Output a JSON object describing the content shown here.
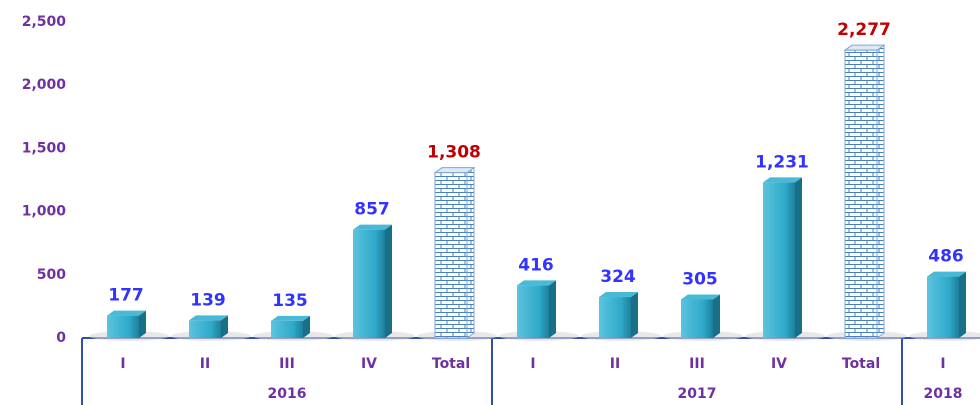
{
  "chart_data": {
    "type": "bar",
    "categories": [
      "I",
      "II",
      "III",
      "IV",
      "Total",
      "I",
      "II",
      "III",
      "IV",
      "Total",
      "I"
    ],
    "values": [
      177,
      139,
      135,
      857,
      1308,
      416,
      324,
      305,
      1231,
      2277,
      486
    ],
    "value_labels": [
      "177",
      "139",
      "135",
      "857",
      "1,308",
      "416",
      "324",
      "305",
      "1,231",
      "2,277",
      "486"
    ],
    "bar_colors": [
      "#2ea8c9",
      "#2ea8c9",
      "#2ea8c9",
      "#2ea8c9",
      "#ffffff",
      "#2ea8c9",
      "#2ea8c9",
      "#2ea8c9",
      "#2ea8c9",
      "#ffffff",
      "#2ea8c9"
    ],
    "label_colors": [
      "#3333ff",
      "#3333ff",
      "#3333ff",
      "#3333ff",
      "#c00000",
      "#3333ff",
      "#3333ff",
      "#3333ff",
      "#3333ff",
      "#c00000",
      "#3333ff"
    ],
    "group_labels": [
      "2016",
      "2017",
      "2018"
    ],
    "group_sizes": [
      5,
      5,
      1
    ],
    "ylim": [
      0,
      2500
    ],
    "yticks": [
      0,
      500,
      {
        "value": 1000,
        "label": "1,000"
      },
      {
        "value": 1500,
        "label": "1,500"
      },
      {
        "value": 2000,
        "label": "2,000"
      },
      {
        "value": 2500,
        "label": "2,500"
      }
    ],
    "grid": false
  }
}
